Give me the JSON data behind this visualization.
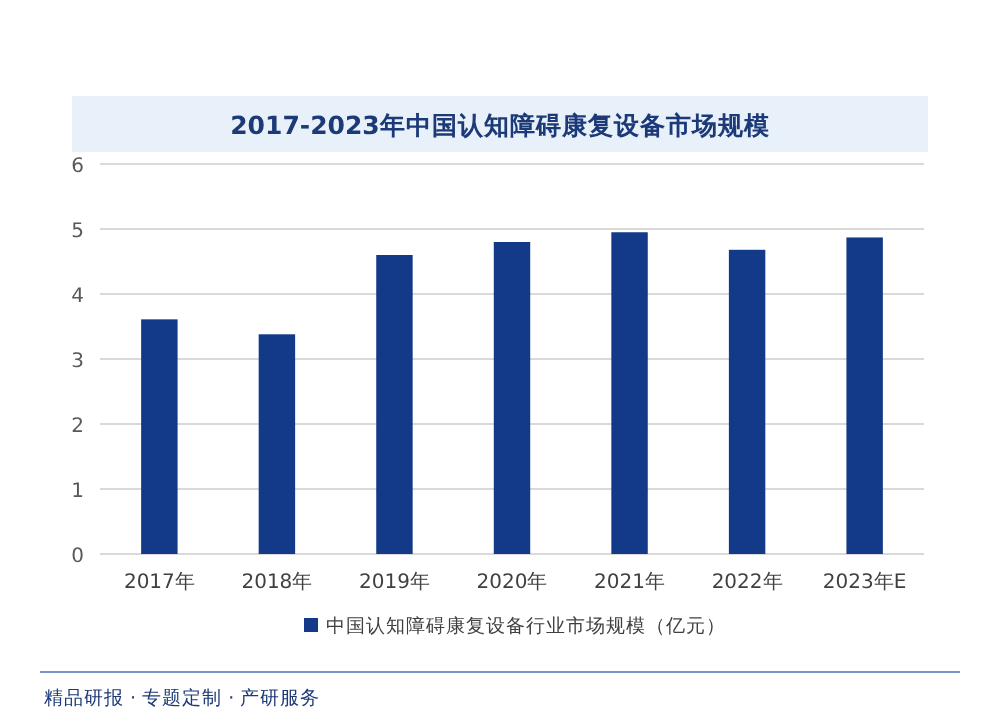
{
  "chart_data": {
    "type": "bar",
    "title": "2017-2023年中国认知障碍康复设备市场规模",
    "categories": [
      "2017年",
      "2018年",
      "2019年",
      "2020年",
      "2021年",
      "2022年",
      "2023年E"
    ],
    "series": [
      {
        "name": "中国认知障碍康复设备行业市场规模（亿元）",
        "color": "#123a88",
        "values": [
          3.61,
          3.38,
          4.6,
          4.8,
          4.95,
          4.68,
          4.87
        ]
      }
    ],
    "ylim": [
      0,
      6
    ],
    "yticks": [
      0,
      1,
      2,
      3,
      4,
      5,
      6
    ],
    "grid": "y",
    "legend": "bottom",
    "annotations": [
      "精品研报 · 专题定制 · 产研服务"
    ]
  }
}
